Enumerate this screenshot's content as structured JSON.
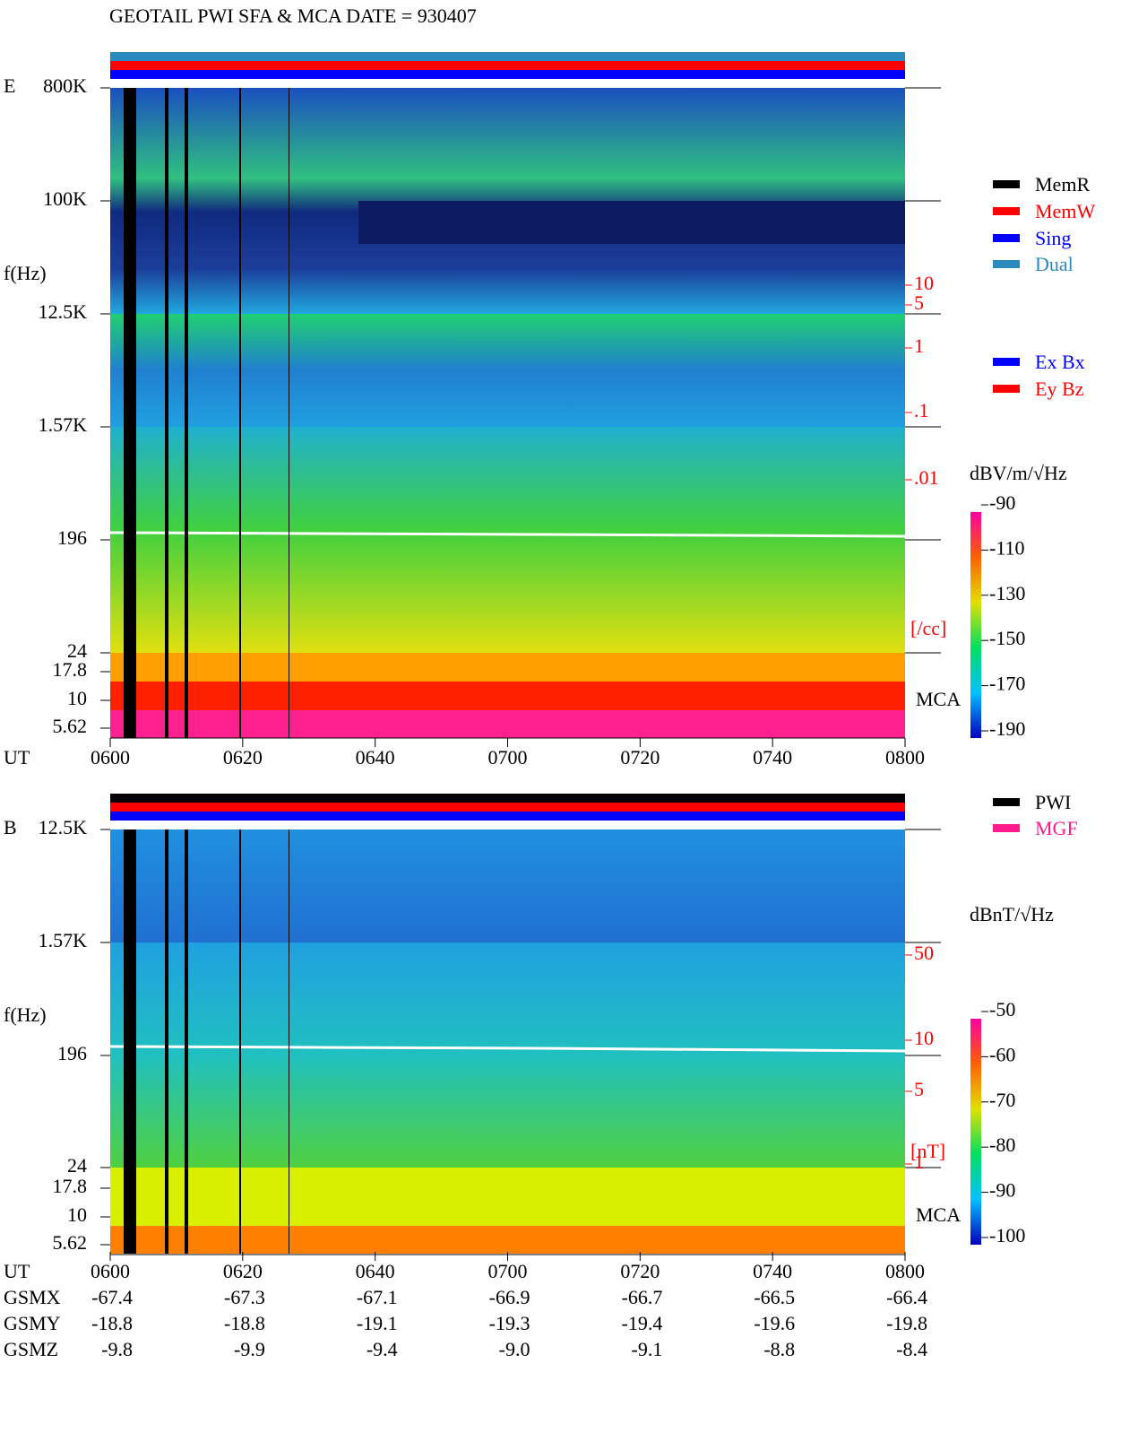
{
  "title": "GEOTAIL  PWI SFA & MCA   DATE = 930407",
  "panels": [
    {
      "label": "E",
      "ylabel": "f(Hz)",
      "freq_ticks": [
        "800K",
        "100K",
        "12.5K",
        "1.57K",
        "196",
        "24",
        "17.8",
        "10",
        "5.62"
      ],
      "right_ticks": [
        "10",
        "5",
        "1",
        ".1",
        ".01"
      ],
      "right_unit": "[/cc]",
      "mca": "MCA",
      "colorbar": {
        "unit": "dBV/m/√Hz",
        "ticks": [
          -90,
          -110,
          -130,
          -150,
          -170,
          -190
        ]
      }
    },
    {
      "label": "B",
      "ylabel": "f(Hz)",
      "freq_ticks": [
        "12.5K",
        "1.57K",
        "196",
        "24",
        "17.8",
        "10",
        "5.62"
      ],
      "right_ticks": [
        "50",
        "10",
        "5",
        "1"
      ],
      "right_unit": "[nT]",
      "mca": "MCA",
      "colorbar": {
        "unit": "dBnT/√Hz",
        "ticks": [
          -50,
          -60,
          -70,
          -80,
          -90,
          -100
        ]
      }
    }
  ],
  "legend_memory": [
    {
      "name": "MemR",
      "color": "#000000"
    },
    {
      "name": "MemW",
      "color": "#ff0000"
    },
    {
      "name": "Sing",
      "color": "#0000ff"
    },
    {
      "name": "Dual",
      "color": "#2a8ac0"
    }
  ],
  "legend_antenna": [
    {
      "name": "Ex Bx",
      "color": "#0000ff"
    },
    {
      "name": "Ey Bz",
      "color": "#ff0000"
    }
  ],
  "legend_source": [
    {
      "name": "PWI",
      "color": "#000000"
    },
    {
      "name": "MGF",
      "color": "#ff1a8c"
    }
  ],
  "time_axis": {
    "label": "UT",
    "ticks": [
      "0600",
      "0620",
      "0640",
      "0700",
      "0720",
      "0740",
      "0800"
    ]
  },
  "orbit": [
    {
      "label": "GSMX",
      "values": [
        "-67.4",
        "-67.3",
        "-67.1",
        "-66.9",
        "-66.7",
        "-66.5",
        "-66.4"
      ]
    },
    {
      "label": "GSMY",
      "values": [
        "-18.8",
        "-18.8",
        "-19.1",
        "-19.3",
        "-19.4",
        "-19.6",
        "-19.8"
      ]
    },
    {
      "label": "GSMZ",
      "values": [
        "-9.8",
        "-9.9",
        "-9.4",
        "-9.0",
        "-9.1",
        "-8.8",
        "-8.4"
      ]
    }
  ]
}
